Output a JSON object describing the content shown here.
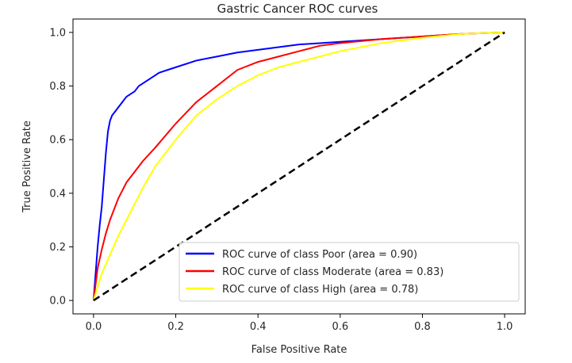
{
  "chart_data": {
    "type": "line",
    "title": "Gastric Cancer ROC curves",
    "xlabel": "False Positive Rate",
    "ylabel": "True Positive Rate",
    "xlim": [
      -0.05,
      1.05
    ],
    "ylim": [
      -0.05,
      1.05
    ],
    "xticks": [
      0.0,
      0.2,
      0.4,
      0.6,
      0.8,
      1.0
    ],
    "xtick_labels": [
      "0.0",
      "0.2",
      "0.4",
      "0.6",
      "0.8",
      "1.0"
    ],
    "yticks": [
      0.0,
      0.2,
      0.4,
      0.6,
      0.8,
      1.0
    ],
    "ytick_labels": [
      "0.0",
      "0.2",
      "0.4",
      "0.6",
      "0.8",
      "1.0"
    ],
    "grid": false,
    "legend_position": "lower-right",
    "series": [
      {
        "name": "ROC curve of class Poor (area = 0.90)",
        "color": "#0000ff",
        "dash": "solid",
        "x": [
          0,
          0.005,
          0.01,
          0.015,
          0.02,
          0.025,
          0.03,
          0.035,
          0.04,
          0.045,
          0.05,
          0.06,
          0.07,
          0.08,
          0.1,
          0.11,
          0.12,
          0.14,
          0.16,
          0.18,
          0.2,
          0.25,
          0.3,
          0.35,
          0.4,
          0.45,
          0.5,
          0.55,
          0.6,
          0.7,
          0.8,
          0.9,
          1.0
        ],
        "y": [
          0,
          0.1,
          0.2,
          0.28,
          0.35,
          0.45,
          0.55,
          0.63,
          0.67,
          0.69,
          0.7,
          0.72,
          0.74,
          0.76,
          0.78,
          0.8,
          0.81,
          0.83,
          0.85,
          0.86,
          0.87,
          0.895,
          0.91,
          0.925,
          0.935,
          0.945,
          0.955,
          0.96,
          0.965,
          0.975,
          0.985,
          0.995,
          1.0
        ]
      },
      {
        "name": "ROC curve of class Moderate (area = 0.83)",
        "color": "#ff0000",
        "dash": "solid",
        "x": [
          0,
          0.01,
          0.02,
          0.03,
          0.04,
          0.05,
          0.06,
          0.08,
          0.1,
          0.12,
          0.15,
          0.2,
          0.25,
          0.3,
          0.35,
          0.4,
          0.45,
          0.5,
          0.55,
          0.6,
          0.7,
          0.8,
          0.9,
          1.0
        ],
        "y": [
          0,
          0.12,
          0.19,
          0.25,
          0.3,
          0.34,
          0.38,
          0.44,
          0.48,
          0.52,
          0.57,
          0.66,
          0.74,
          0.8,
          0.86,
          0.89,
          0.91,
          0.93,
          0.95,
          0.96,
          0.975,
          0.985,
          0.995,
          1.0
        ]
      },
      {
        "name": "ROC curve of class High (area = 0.78)",
        "color": "#ffff00",
        "dash": "solid",
        "x": [
          0,
          0.02,
          0.04,
          0.06,
          0.08,
          0.1,
          0.12,
          0.15,
          0.2,
          0.25,
          0.3,
          0.35,
          0.4,
          0.45,
          0.5,
          0.55,
          0.6,
          0.7,
          0.8,
          0.9,
          1.0
        ],
        "y": [
          0,
          0.1,
          0.17,
          0.24,
          0.3,
          0.36,
          0.42,
          0.5,
          0.6,
          0.69,
          0.75,
          0.8,
          0.84,
          0.87,
          0.89,
          0.91,
          0.93,
          0.96,
          0.98,
          0.995,
          1.0
        ]
      },
      {
        "name": "",
        "color": "#000000",
        "dash": "dashed",
        "x": [
          0,
          1
        ],
        "y": [
          0,
          1
        ]
      }
    ]
  }
}
